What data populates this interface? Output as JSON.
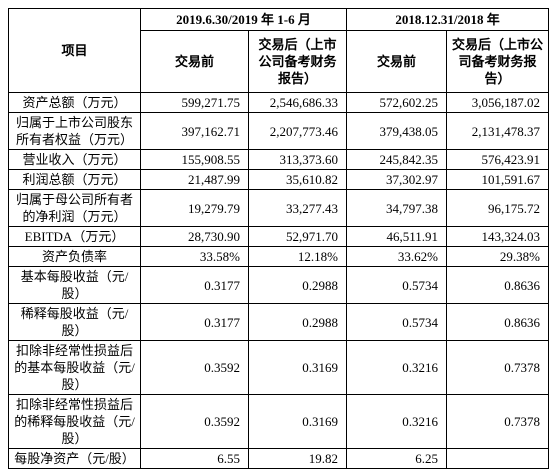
{
  "table": {
    "header": {
      "item": "项目",
      "periods": [
        "2019.6.30/2019 年 1-6 月",
        "2018.12.31/2018 年"
      ],
      "columns": [
        "交易前",
        "交易后（上市公司备考财务报告）",
        "交易前",
        "交易后（上市公司备考财务报告）"
      ]
    },
    "rows": [
      {
        "label": "资产总额（万元）",
        "values": [
          "599,271.75",
          "2,546,686.33",
          "572,602.25",
          "3,056,187.02"
        ]
      },
      {
        "label": "归属于上市公司股东所有者权益（万元）",
        "values": [
          "397,162.71",
          "2,207,773.46",
          "379,438.05",
          "2,131,478.37"
        ]
      },
      {
        "label": "营业收入（万元）",
        "values": [
          "155,908.55",
          "313,373.60",
          "245,842.35",
          "576,423.91"
        ]
      },
      {
        "label": "利润总额（万元）",
        "values": [
          "21,487.99",
          "35,610.82",
          "37,302.97",
          "101,591.67"
        ]
      },
      {
        "label": "归属于母公司所有者的净利润（万元）",
        "values": [
          "19,279.79",
          "33,277.43",
          "34,797.38",
          "96,175.72"
        ]
      },
      {
        "label": "EBITDA（万元）",
        "values": [
          "28,730.90",
          "52,971.70",
          "46,511.91",
          "143,324.03"
        ]
      },
      {
        "label": "资产负债率",
        "values": [
          "33.58%",
          "12.18%",
          "33.62%",
          "29.38%"
        ]
      },
      {
        "label": "基本每股收益（元/股）",
        "values": [
          "0.3177",
          "0.2988",
          "0.5734",
          "0.8636"
        ]
      },
      {
        "label": "稀释每股收益（元/股）",
        "values": [
          "0.3177",
          "0.2988",
          "0.5734",
          "0.8636"
        ]
      },
      {
        "label": "扣除非经常性损益后的基本每股收益（元/股）",
        "values": [
          "0.3592",
          "0.3169",
          "0.3216",
          "0.7378"
        ]
      },
      {
        "label": "扣除非经常性损益后的稀释每股收益（元/股）",
        "values": [
          "0.3592",
          "0.3169",
          "0.3216",
          "0.7378"
        ]
      },
      {
        "label": "每股净资产（元/股）",
        "values": [
          "6.55",
          "19.82",
          "6.25",
          null
        ]
      }
    ]
  }
}
